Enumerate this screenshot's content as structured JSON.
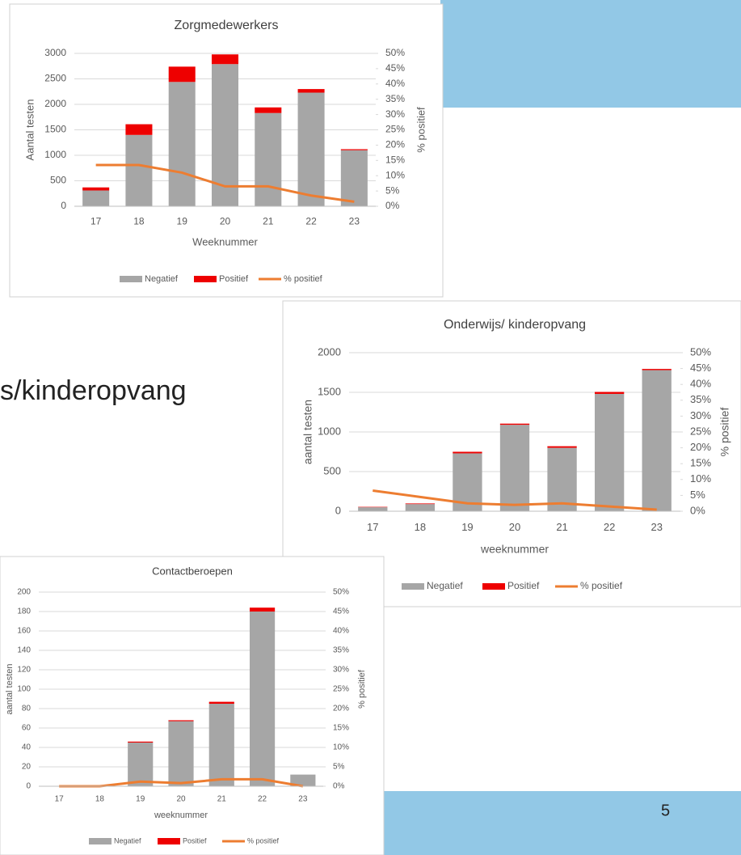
{
  "slide": {
    "heading": "s/kinderopvang",
    "page_number": "5"
  },
  "chart_data": [
    {
      "type": "bar",
      "stacked": true,
      "title": "Zorgmedewerkers",
      "x_label": "Weeknummer",
      "y_label": "Aantal testen",
      "y2_label": "% positief",
      "categories": [
        "17",
        "18",
        "19",
        "20",
        "21",
        "22",
        "23"
      ],
      "series": [
        {
          "name": "Negatief",
          "color": "#a6a6a6",
          "values": [
            310,
            1400,
            2440,
            2790,
            1830,
            2230,
            1100
          ]
        },
        {
          "name": "Positief",
          "color": "#ee0000",
          "values": [
            60,
            210,
            300,
            190,
            110,
            70,
            20
          ]
        },
        {
          "name": "% positief",
          "color": "#ed7d31",
          "type": "line",
          "axis": "y2",
          "values": [
            13.5,
            13.5,
            11,
            6.5,
            6.5,
            3.5,
            1.5
          ]
        }
      ],
      "ylim": [
        0,
        3000
      ],
      "yticks": [
        0,
        500,
        1000,
        1500,
        2000,
        2500,
        3000
      ],
      "y2lim": [
        0,
        50
      ],
      "y2ticks": [
        {
          "value": 0,
          "label": "0%"
        },
        {
          "value": 5,
          "label": "5%"
        },
        {
          "value": 10,
          "label": "10%"
        },
        {
          "value": 15,
          "label": "15%"
        },
        {
          "value": 20,
          "label": "20%"
        },
        {
          "value": 25,
          "label": "25%"
        },
        {
          "value": 30,
          "label": "30%"
        },
        {
          "value": 35,
          "label": "35%"
        },
        {
          "value": 40,
          "label": "40%"
        },
        {
          "value": 45,
          "label": "45%"
        },
        {
          "value": 50,
          "label": "50%"
        }
      ],
      "grid": true,
      "legend": "bottom"
    },
    {
      "type": "bar",
      "stacked": true,
      "title": "Onderwijs/ kinderopvang",
      "x_label": "weeknummer",
      "y_label": "aantal testen",
      "y2_label": "% positief",
      "categories": [
        "17",
        "18",
        "19",
        "20",
        "21",
        "22",
        "23"
      ],
      "series": [
        {
          "name": "Negatief",
          "color": "#a6a6a6",
          "values": [
            50,
            90,
            730,
            1090,
            800,
            1480,
            1780
          ]
        },
        {
          "name": "Positief",
          "color": "#ee0000",
          "values": [
            5,
            8,
            20,
            15,
            20,
            25,
            15
          ]
        },
        {
          "name": "% positief",
          "color": "#ed7d31",
          "type": "line",
          "axis": "y2",
          "values": [
            6.5,
            4.5,
            2.5,
            2,
            2.5,
            1.5,
            0.5
          ]
        }
      ],
      "ylim": [
        0,
        2000
      ],
      "yticks": [
        0,
        500,
        1000,
        1500,
        2000
      ],
      "y2lim": [
        0,
        50
      ],
      "y2ticks": [
        {
          "value": 0,
          "label": "0%"
        },
        {
          "value": 5,
          "label": "5%"
        },
        {
          "value": 10,
          "label": "10%"
        },
        {
          "value": 15,
          "label": "15%"
        },
        {
          "value": 20,
          "label": "20%"
        },
        {
          "value": 25,
          "label": "25%"
        },
        {
          "value": 30,
          "label": "30%"
        },
        {
          "value": 35,
          "label": "35%"
        },
        {
          "value": 40,
          "label": "40%"
        },
        {
          "value": 45,
          "label": "45%"
        },
        {
          "value": 50,
          "label": "50%"
        }
      ],
      "grid": true,
      "legend": "bottom"
    },
    {
      "type": "bar",
      "stacked": true,
      "title": "Contactberoepen",
      "x_label": "weeknummer",
      "y_label": "aantal testen",
      "y2_label": "% positief",
      "categories": [
        "17",
        "18",
        "19",
        "20",
        "21",
        "22",
        "23"
      ],
      "series": [
        {
          "name": "Negatief",
          "color": "#a6a6a6",
          "values": [
            0,
            0,
            45,
            67,
            85,
            180,
            12
          ]
        },
        {
          "name": "Positief",
          "color": "#ee0000",
          "values": [
            0,
            0,
            1,
            1,
            2,
            4,
            0
          ]
        },
        {
          "name": "% positief",
          "color": "#ed7d31",
          "type": "line",
          "axis": "y2",
          "values": [
            0,
            0,
            1.2,
            0.8,
            1.8,
            1.8,
            0
          ]
        }
      ],
      "ylim": [
        0,
        200
      ],
      "yticks": [
        0,
        20,
        40,
        60,
        80,
        100,
        120,
        140,
        160,
        180,
        200
      ],
      "y2lim": [
        0,
        50
      ],
      "y2ticks": [
        {
          "value": 0,
          "label": "0%"
        },
        {
          "value": 5,
          "label": "5%"
        },
        {
          "value": 10,
          "label": "10%"
        },
        {
          "value": 15,
          "label": "15%"
        },
        {
          "value": 20,
          "label": "20%"
        },
        {
          "value": 25,
          "label": "25%"
        },
        {
          "value": 30,
          "label": "30%"
        },
        {
          "value": 35,
          "label": "35%"
        },
        {
          "value": 40,
          "label": "40%"
        },
        {
          "value": 45,
          "label": "45%"
        },
        {
          "value": 50,
          "label": "50%"
        }
      ],
      "grid": true,
      "legend": "bottom"
    }
  ]
}
